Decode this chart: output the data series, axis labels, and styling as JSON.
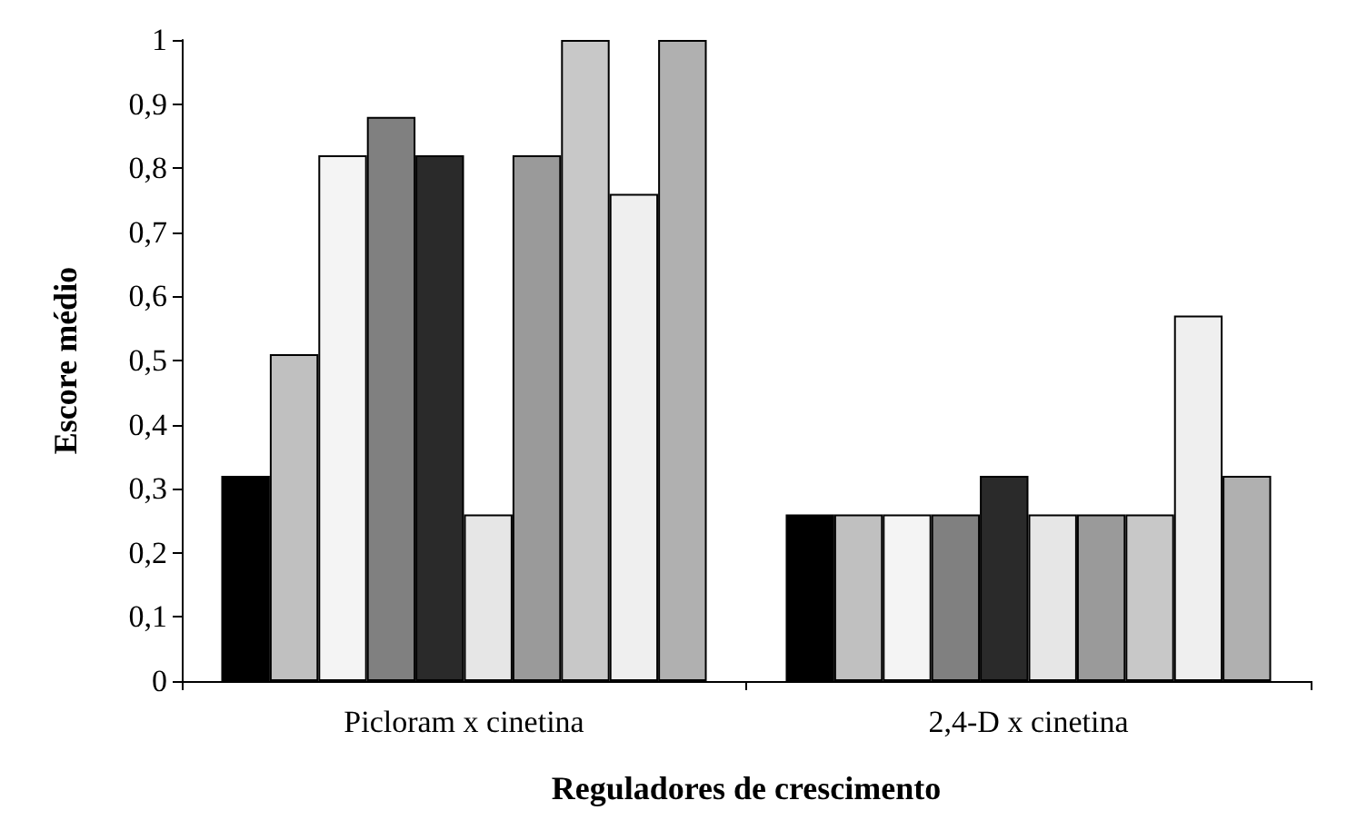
{
  "chart_data": {
    "type": "bar",
    "xlabel": "Reguladores de crescimento",
    "ylabel": "Escore médio",
    "categories": [
      "Picloram x cinetina",
      "2,4-D x cinetina"
    ],
    "series": [
      {
        "color": "#000000",
        "values": [
          0.32,
          0.26
        ]
      },
      {
        "color": "#c0c0c0",
        "values": [
          0.51,
          0.26
        ]
      },
      {
        "color": "#f4f4f4",
        "values": [
          0.82,
          0.26
        ]
      },
      {
        "color": "#808080",
        "values": [
          0.88,
          0.26
        ]
      },
      {
        "color": "#2a2a2a",
        "values": [
          0.82,
          0.32
        ]
      },
      {
        "color": "#e6e6e6",
        "values": [
          0.26,
          0.26
        ]
      },
      {
        "color": "#9a9a9a",
        "values": [
          0.82,
          0.26
        ]
      },
      {
        "color": "#c8c8c8",
        "values": [
          1.0,
          0.26
        ]
      },
      {
        "color": "#efefef",
        "values": [
          0.76,
          0.57
        ]
      },
      {
        "color": "#b0b0b0",
        "values": [
          1.0,
          0.32
        ]
      }
    ],
    "ylim": [
      0,
      1
    ],
    "yticks": [
      0,
      {
        "value": 0.1,
        "label": "0,1"
      },
      {
        "value": 0.2,
        "label": "0,2"
      },
      {
        "value": 0.3,
        "label": "0,3"
      },
      {
        "value": 0.4,
        "label": "0,4"
      },
      {
        "value": 0.5,
        "label": "0,5"
      },
      {
        "value": 0.6,
        "label": "0,6"
      },
      {
        "value": 0.7,
        "label": "0,7"
      },
      {
        "value": 0.8,
        "label": "0,8"
      },
      {
        "value": 0.9,
        "label": "0,9"
      },
      1
    ],
    "grid": false
  }
}
